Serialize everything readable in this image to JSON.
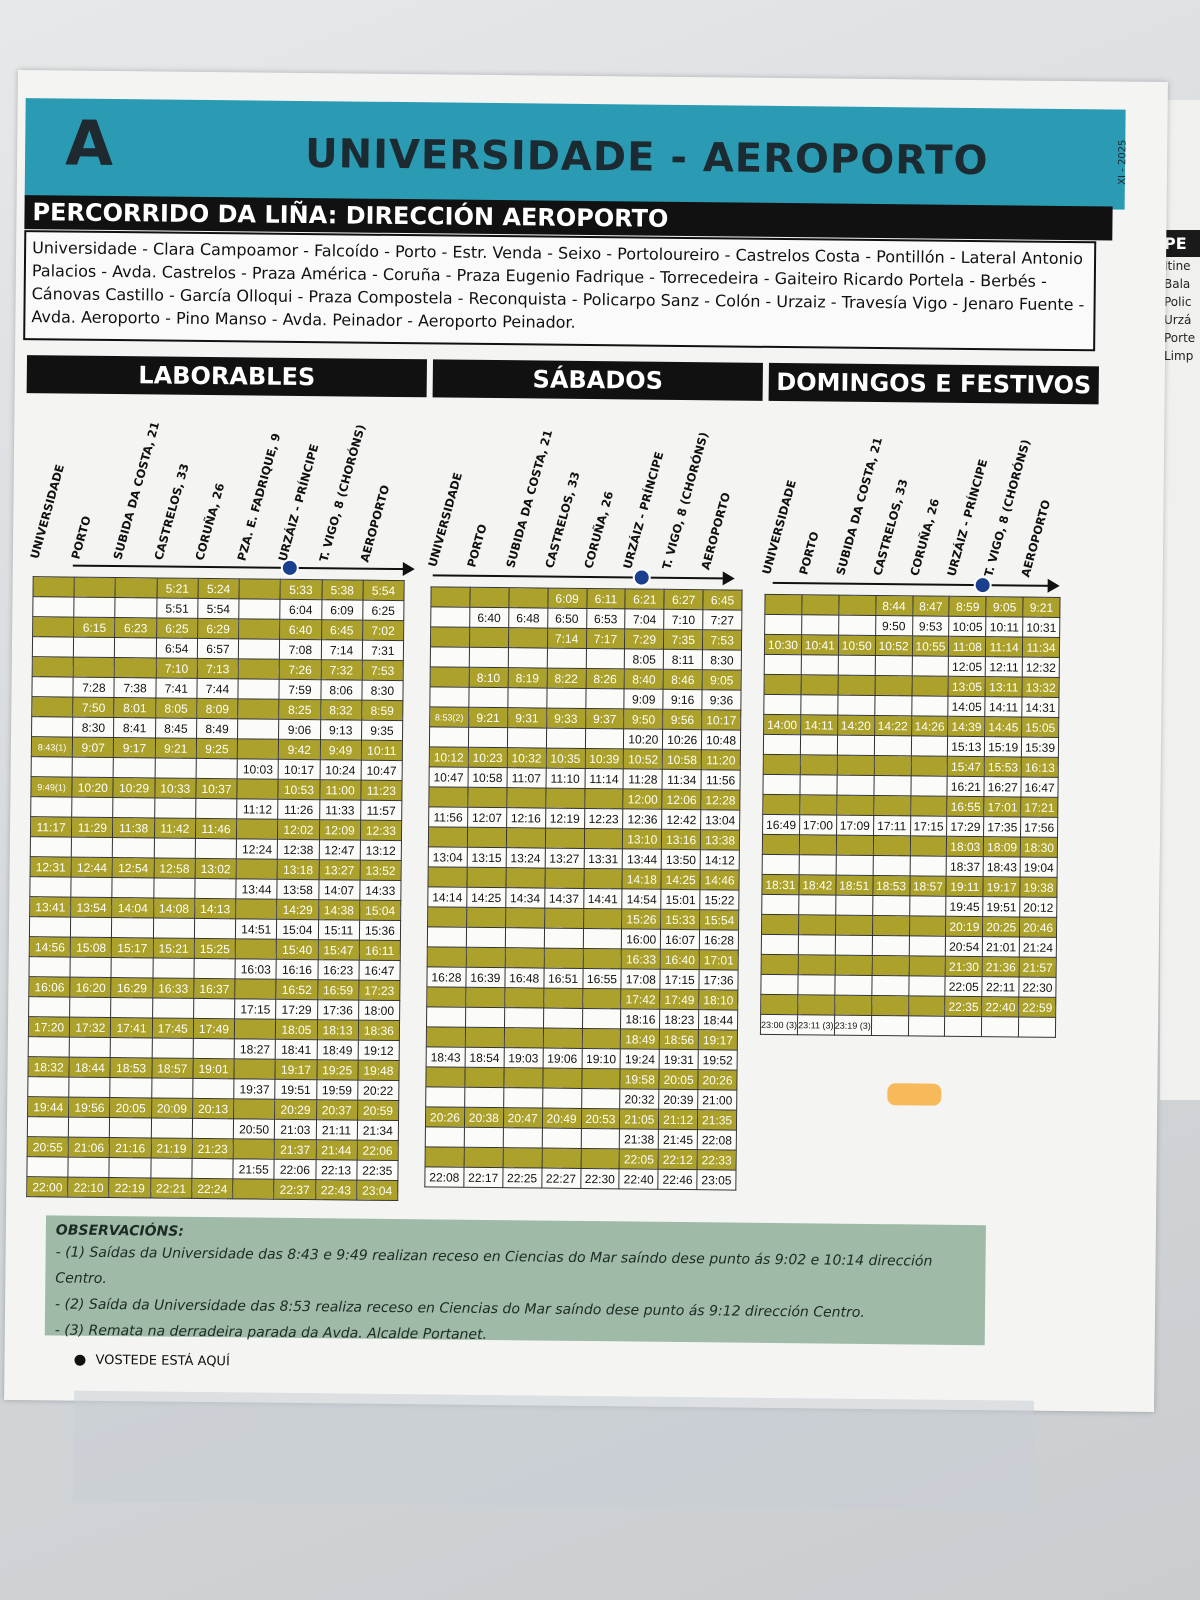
{
  "line_letter": "A",
  "line_title": "UNIVERSIDADE - AEROPORTO",
  "print_date": "XI - 2025",
  "route_heading": "PERCORRIDO DA LIÑA:  DIRECCIÓN AEROPORTO",
  "route_text": "Universidade - Clara Campoamor - Falcoído - Porto - Estr. Venda - Seixo - Portoloureiro - Castrelos Costa - Pontillón - Lateral Antonio Palacios - Avda. Castrelos - Praza América - Coruña - Praza Eugenio Fadrique - Torrecedeira - Gaiteiro Ricardo Portela - Berbés - Cánovas Castillo - García Olloqui - Praza Compostela - Reconquista - Policarpo Sanz - Colón - Urzaiz - Travesía Vigo - Jenaro Fuente - Avda. Aeroporto - Pino Manso - Avda. Peinador - Aeroporto Peinador.",
  "sections": {
    "weekday": "LABORABLES",
    "saturday": "SÁBADOS",
    "sunday": "DOMINGOS E FESTIVOS"
  },
  "stops_weekday": [
    "UNIVERSIDADE",
    "PORTO",
    "SUBIDA DA COSTA, 21",
    "CASTRELOS, 33",
    "CORUÑA, 26",
    "PZA. E. FADRIQUE, 9",
    "URZÁIZ - PRÍNCIPE",
    "T. VIGO, 8 (CHORÓNS)",
    "AEROPORTO"
  ],
  "stops_saturday": [
    "UNIVERSIDADE",
    "PORTO",
    "SUBIDA DA COSTA, 21",
    "CASTRELOS, 33",
    "CORUÑA, 26",
    "URZÁIZ - PRÍNCIPE",
    "T. VIGO, 8 (CHORÓNS)",
    "AEROPORTO"
  ],
  "stops_sunday": [
    "UNIVERSIDADE",
    "PORTO",
    "SUBIDA DA COSTA, 21",
    "CASTRELOS, 33",
    "CORUÑA, 26",
    "URZÁIZ - PRÍNCIPE",
    "T. VIGO, 8 (CHORÓNS)",
    "AEROPORTO"
  ],
  "weekday_rows": [
    [
      "",
      "",
      "",
      "5:21",
      "5:24",
      "",
      "5:33",
      "5:38",
      "5:54"
    ],
    [
      "",
      "",
      "",
      "5:51",
      "5:54",
      "",
      "6:04",
      "6:09",
      "6:25"
    ],
    [
      "",
      "6:15",
      "6:23",
      "6:25",
      "6:29",
      "",
      "6:40",
      "6:45",
      "7:02"
    ],
    [
      "",
      "",
      "",
      "6:54",
      "6:57",
      "",
      "7:08",
      "7:14",
      "7:31"
    ],
    [
      "",
      "",
      "",
      "7:10",
      "7:13",
      "",
      "7:26",
      "7:32",
      "7:53"
    ],
    [
      "",
      "7:28",
      "7:38",
      "7:41",
      "7:44",
      "",
      "7:59",
      "8:06",
      "8:30"
    ],
    [
      "",
      "7:50",
      "8:01",
      "8:05",
      "8:09",
      "",
      "8:25",
      "8:32",
      "8:59"
    ],
    [
      "",
      "8:30",
      "8:41",
      "8:45",
      "8:49",
      "",
      "9:06",
      "9:13",
      "9:35"
    ],
    [
      "8:43(1)",
      "9:07",
      "9:17",
      "9:21",
      "9:25",
      "",
      "9:42",
      "9:49",
      "10:11"
    ],
    [
      "",
      "",
      "",
      "",
      "",
      "10:03",
      "10:17",
      "10:24",
      "10:47"
    ],
    [
      "9:49(1)",
      "10:20",
      "10:29",
      "10:33",
      "10:37",
      "",
      "10:53",
      "11:00",
      "11:23"
    ],
    [
      "",
      "",
      "",
      "",
      "",
      "11:12",
      "11:26",
      "11:33",
      "11:57"
    ],
    [
      "11:17",
      "11:29",
      "11:38",
      "11:42",
      "11:46",
      "",
      "12:02",
      "12:09",
      "12:33"
    ],
    [
      "",
      "",
      "",
      "",
      "",
      "12:24",
      "12:38",
      "12:47",
      "13:12"
    ],
    [
      "12:31",
      "12:44",
      "12:54",
      "12:58",
      "13:02",
      "",
      "13:18",
      "13:27",
      "13:52"
    ],
    [
      "",
      "",
      "",
      "",
      "",
      "13:44",
      "13:58",
      "14:07",
      "14:33"
    ],
    [
      "13:41",
      "13:54",
      "14:04",
      "14:08",
      "14:13",
      "",
      "14:29",
      "14:38",
      "15:04"
    ],
    [
      "",
      "",
      "",
      "",
      "",
      "14:51",
      "15:04",
      "15:11",
      "15:36"
    ],
    [
      "14:56",
      "15:08",
      "15:17",
      "15:21",
      "15:25",
      "",
      "15:40",
      "15:47",
      "16:11"
    ],
    [
      "",
      "",
      "",
      "",
      "",
      "16:03",
      "16:16",
      "16:23",
      "16:47"
    ],
    [
      "16:06",
      "16:20",
      "16:29",
      "16:33",
      "16:37",
      "",
      "16:52",
      "16:59",
      "17:23"
    ],
    [
      "",
      "",
      "",
      "",
      "",
      "17:15",
      "17:29",
      "17:36",
      "18:00"
    ],
    [
      "17:20",
      "17:32",
      "17:41",
      "17:45",
      "17:49",
      "",
      "18:05",
      "18:13",
      "18:36"
    ],
    [
      "",
      "",
      "",
      "",
      "",
      "18:27",
      "18:41",
      "18:49",
      "19:12"
    ],
    [
      "18:32",
      "18:44",
      "18:53",
      "18:57",
      "19:01",
      "",
      "19:17",
      "19:25",
      "19:48"
    ],
    [
      "",
      "",
      "",
      "",
      "",
      "19:37",
      "19:51",
      "19:59",
      "20:22"
    ],
    [
      "19:44",
      "19:56",
      "20:05",
      "20:09",
      "20:13",
      "",
      "20:29",
      "20:37",
      "20:59"
    ],
    [
      "",
      "",
      "",
      "",
      "",
      "20:50",
      "21:03",
      "21:11",
      "21:34"
    ],
    [
      "20:55",
      "21:06",
      "21:16",
      "21:19",
      "21:23",
      "",
      "21:37",
      "21:44",
      "22:06"
    ],
    [
      "",
      "",
      "",
      "",
      "",
      "21:55",
      "22:06",
      "22:13",
      "22:35"
    ],
    [
      "22:00",
      "22:10",
      "22:19",
      "22:21",
      "22:24",
      "",
      "22:37",
      "22:43",
      "23:04"
    ]
  ],
  "saturday_rows": [
    [
      "",
      "",
      "",
      "6:09",
      "6:11",
      "6:21",
      "6:27",
      "6:45"
    ],
    [
      "",
      "6:40",
      "6:48",
      "6:50",
      "6:53",
      "7:04",
      "7:10",
      "7:27"
    ],
    [
      "",
      "",
      "",
      "7:14",
      "7:17",
      "7:29",
      "7:35",
      "7:53"
    ],
    [
      "",
      "",
      "",
      "",
      "",
      "8:05",
      "8:11",
      "8:30"
    ],
    [
      "",
      "8:10",
      "8:19",
      "8:22",
      "8:26",
      "8:40",
      "8:46",
      "9:05"
    ],
    [
      "",
      "",
      "",
      "",
      "",
      "9:09",
      "9:16",
      "9:36"
    ],
    [
      "8:53(2)",
      "9:21",
      "9:31",
      "9:33",
      "9:37",
      "9:50",
      "9:56",
      "10:17"
    ],
    [
      "",
      "",
      "",
      "",
      "",
      "10:20",
      "10:26",
      "10:48"
    ],
    [
      "10:12",
      "10:23",
      "10:32",
      "10:35",
      "10:39",
      "10:52",
      "10:58",
      "11:20"
    ],
    [
      "10:47",
      "10:58",
      "11:07",
      "11:10",
      "11:14",
      "11:28",
      "11:34",
      "11:56"
    ],
    [
      "",
      "",
      "",
      "",
      "",
      "12:00",
      "12:06",
      "12:28"
    ],
    [
      "11:56",
      "12:07",
      "12:16",
      "12:19",
      "12:23",
      "12:36",
      "12:42",
      "13:04"
    ],
    [
      "",
      "",
      "",
      "",
      "",
      "13:10",
      "13:16",
      "13:38"
    ],
    [
      "13:04",
      "13:15",
      "13:24",
      "13:27",
      "13:31",
      "13:44",
      "13:50",
      "14:12"
    ],
    [
      "",
      "",
      "",
      "",
      "",
      "14:18",
      "14:25",
      "14:46"
    ],
    [
      "14:14",
      "14:25",
      "14:34",
      "14:37",
      "14:41",
      "14:54",
      "15:01",
      "15:22"
    ],
    [
      "",
      "",
      "",
      "",
      "",
      "15:26",
      "15:33",
      "15:54"
    ],
    [
      "",
      "",
      "",
      "",
      "",
      "16:00",
      "16:07",
      "16:28"
    ],
    [
      "",
      "",
      "",
      "",
      "",
      "16:33",
      "16:40",
      "17:01"
    ],
    [
      "16:28",
      "16:39",
      "16:48",
      "16:51",
      "16:55",
      "17:08",
      "17:15",
      "17:36"
    ],
    [
      "",
      "",
      "",
      "",
      "",
      "17:42",
      "17:49",
      "18:10"
    ],
    [
      "",
      "",
      "",
      "",
      "",
      "18:16",
      "18:23",
      "18:44"
    ],
    [
      "",
      "",
      "",
      "",
      "",
      "18:49",
      "18:56",
      "19:17"
    ],
    [
      "18:43",
      "18:54",
      "19:03",
      "19:06",
      "19:10",
      "19:24",
      "19:31",
      "19:52"
    ],
    [
      "",
      "",
      "",
      "",
      "",
      "19:58",
      "20:05",
      "20:26"
    ],
    [
      "",
      "",
      "",
      "",
      "",
      "20:32",
      "20:39",
      "21:00"
    ],
    [
      "20:26",
      "20:38",
      "20:47",
      "20:49",
      "20:53",
      "21:05",
      "21:12",
      "21:35"
    ],
    [
      "",
      "",
      "",
      "",
      "",
      "21:38",
      "21:45",
      "22:08"
    ],
    [
      "",
      "",
      "",
      "",
      "",
      "22:05",
      "22:12",
      "22:33"
    ],
    [
      "22:08",
      "22:17",
      "22:25",
      "22:27",
      "22:30",
      "22:40",
      "22:46",
      "23:05"
    ]
  ],
  "sunday_rows": [
    [
      "",
      "",
      "",
      "8:44",
      "8:47",
      "8:59",
      "9:05",
      "9:21"
    ],
    [
      "",
      "",
      "",
      "9:50",
      "9:53",
      "10:05",
      "10:11",
      "10:31"
    ],
    [
      "10:30",
      "10:41",
      "10:50",
      "10:52",
      "10:55",
      "11:08",
      "11:14",
      "11:34"
    ],
    [
      "",
      "",
      "",
      "",
      "",
      "12:05",
      "12:11",
      "12:32"
    ],
    [
      "",
      "",
      "",
      "",
      "",
      "13:05",
      "13:11",
      "13:32"
    ],
    [
      "",
      "",
      "",
      "",
      "",
      "14:05",
      "14:11",
      "14:31"
    ],
    [
      "14:00",
      "14:11",
      "14:20",
      "14:22",
      "14:26",
      "14:39",
      "14:45",
      "15:05"
    ],
    [
      "",
      "",
      "",
      "",
      "",
      "15:13",
      "15:19",
      "15:39"
    ],
    [
      "",
      "",
      "",
      "",
      "",
      "15:47",
      "15:53",
      "16:13"
    ],
    [
      "",
      "",
      "",
      "",
      "",
      "16:21",
      "16:27",
      "16:47"
    ],
    [
      "",
      "",
      "",
      "",
      "",
      "16:55",
      "17:01",
      "17:21"
    ],
    [
      "16:49",
      "17:00",
      "17:09",
      "17:11",
      "17:15",
      "17:29",
      "17:35",
      "17:56"
    ],
    [
      "",
      "",
      "",
      "",
      "",
      "18:03",
      "18:09",
      "18:30"
    ],
    [
      "",
      "",
      "",
      "",
      "",
      "18:37",
      "18:43",
      "19:04"
    ],
    [
      "18:31",
      "18:42",
      "18:51",
      "18:53",
      "18:57",
      "19:11",
      "19:17",
      "19:38"
    ],
    [
      "",
      "",
      "",
      "",
      "",
      "19:45",
      "19:51",
      "20:12"
    ],
    [
      "",
      "",
      "",
      "",
      "",
      "20:19",
      "20:25",
      "20:46"
    ],
    [
      "",
      "",
      "",
      "",
      "",
      "20:54",
      "21:01",
      "21:24"
    ],
    [
      "",
      "",
      "",
      "",
      "",
      "21:30",
      "21:36",
      "21:57"
    ],
    [
      "",
      "",
      "",
      "",
      "",
      "22:05",
      "22:11",
      "22:30"
    ],
    [
      "",
      "",
      "",
      "",
      "",
      "22:35",
      "22:40",
      "22:59"
    ],
    [
      "23:00 (3)",
      "23:11 (3)",
      "23:19 (3)",
      "",
      "",
      "",
      "",
      ""
    ]
  ],
  "observations_title": "OBSERVACIÓNS:",
  "observations": [
    "- (1) Saídas da Universidade das 8:43 e 9:49 realizan receso en Ciencias do Mar saíndo dese punto ás 9:02 e 10:14 dirección Centro.",
    "- (2) Saída da Universidade das 8:53 realiza receso en Ciencias do Mar saíndo dese punto ás 9:12 dirección Centro.",
    "- (3) Remata na derradeira parada da Avda. Alcalde Portanet."
  ],
  "you_are_here": "VOSTEDE ESTÁ AQUÍ",
  "side_panel": {
    "heading": "PE",
    "lines": [
      "Itine",
      "Bala",
      "Polic",
      "Urzá",
      "Porte",
      "Limp"
    ]
  },
  "colors": {
    "header_band": "#2a9bb3",
    "row_dark": "#aca12a",
    "observations_bg": "#9fbaa7",
    "here_dot": "#1b3f8f"
  }
}
